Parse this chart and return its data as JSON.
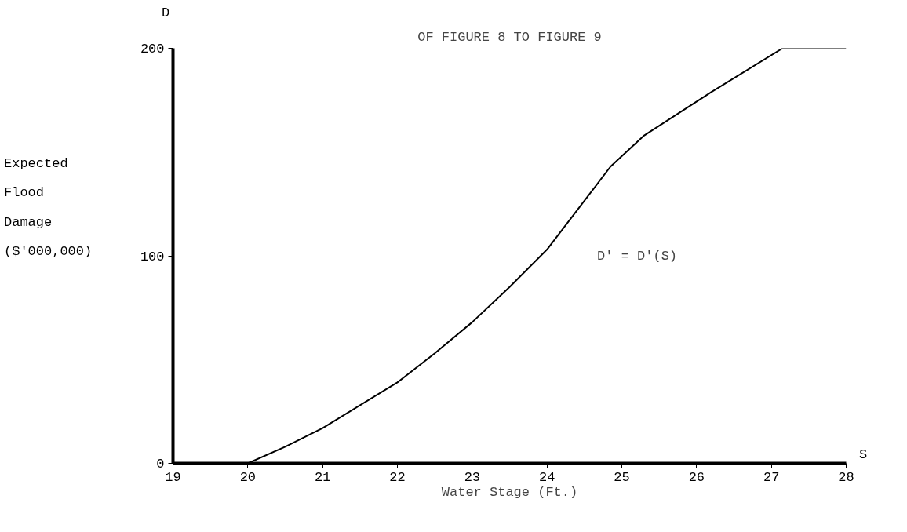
{
  "chart_data": {
    "type": "line",
    "title": "OF FIGURE 8 TO FIGURE 9",
    "xlabel": "Water Stage (Ft.)",
    "ylabel": "Expected\nFlood\nDamage\n($'000,000)",
    "annotations": [
      "D",
      "S",
      "D' = D'(S)"
    ],
    "x": [
      19,
      20,
      20.5,
      21,
      22,
      22.5,
      23,
      23.5,
      24,
      24.85,
      25.3,
      26.2,
      27.15,
      28
    ],
    "series": [
      {
        "color": "#000000",
        "values": [
          0,
          0,
          8,
          17,
          39,
          53,
          68,
          85,
          103,
          143,
          158,
          179,
          200,
          200
        ]
      }
    ],
    "xlim": [
      19,
      28
    ],
    "ylim": [
      0,
      200
    ],
    "xticks": [
      19,
      20,
      21,
      22,
      23,
      24,
      25,
      26,
      27,
      28
    ],
    "yticks": [
      0,
      100,
      200
    ],
    "grid": false,
    "marker": "none",
    "line_style": "solid"
  }
}
